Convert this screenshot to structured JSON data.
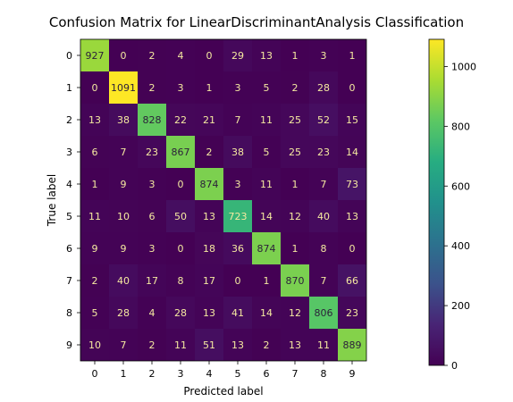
{
  "chart_data": {
    "type": "heatmap",
    "title": "Confusion Matrix for LinearDiscriminantAnalysis Classification",
    "xlabel": "Predicted label",
    "ylabel": "True label",
    "x_categories": [
      "0",
      "1",
      "2",
      "3",
      "4",
      "5",
      "6",
      "7",
      "8",
      "9"
    ],
    "y_categories": [
      "0",
      "1",
      "2",
      "3",
      "4",
      "5",
      "6",
      "7",
      "8",
      "9"
    ],
    "values": [
      [
        927,
        0,
        2,
        4,
        0,
        29,
        13,
        1,
        3,
        1
      ],
      [
        0,
        1091,
        2,
        3,
        1,
        3,
        5,
        2,
        28,
        0
      ],
      [
        13,
        38,
        828,
        22,
        21,
        7,
        11,
        25,
        52,
        15
      ],
      [
        6,
        7,
        23,
        867,
        2,
        38,
        5,
        25,
        23,
        14
      ],
      [
        1,
        9,
        3,
        0,
        874,
        3,
        11,
        1,
        7,
        73
      ],
      [
        11,
        10,
        6,
        50,
        13,
        723,
        14,
        12,
        40,
        13
      ],
      [
        9,
        9,
        3,
        0,
        18,
        36,
        874,
        1,
        8,
        0
      ],
      [
        2,
        40,
        17,
        8,
        17,
        0,
        1,
        870,
        7,
        66
      ],
      [
        5,
        28,
        4,
        28,
        13,
        41,
        14,
        12,
        806,
        23
      ],
      [
        10,
        7,
        2,
        11,
        51,
        13,
        2,
        13,
        11,
        889
      ]
    ],
    "colormap": "viridis",
    "colorbar": {
      "min": 0,
      "max": 1091,
      "ticks": [
        0,
        200,
        400,
        600,
        800,
        1000
      ]
    },
    "legend": "colorbar-right",
    "grid": false
  }
}
